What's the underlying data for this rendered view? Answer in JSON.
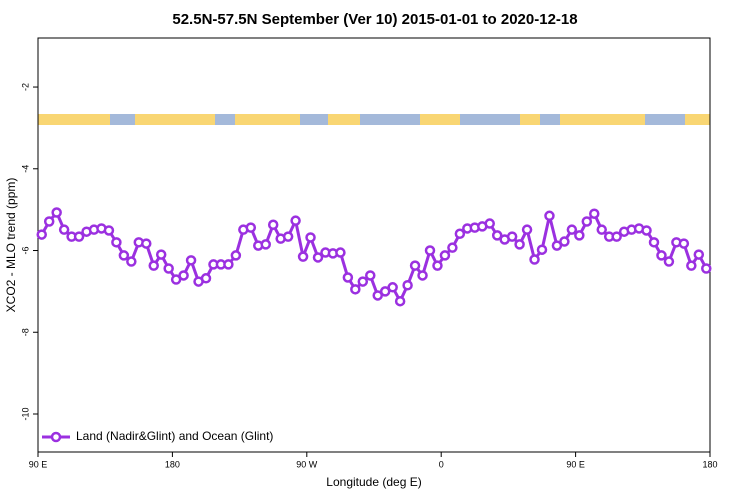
{
  "chart_data": {
    "type": "line",
    "title": "52.5N-57.5N September (Ver 10)   2015-01-01 to 2020-12-18",
    "x_label": "Longitude (deg E)",
    "y_label": "XCO2 - MLO trend (ppm)",
    "xlim": [
      90,
      540
    ],
    "ylim": [
      -10.93,
      -0.8
    ],
    "xticks": [
      {
        "value": 90,
        "label": "90 E"
      },
      {
        "value": 180,
        "label": "180"
      },
      {
        "value": 270,
        "label": "90 W"
      },
      {
        "value": 360,
        "label": "0"
      },
      {
        "value": 450,
        "label": "90 E"
      },
      {
        "value": 540,
        "label": "180"
      }
    ],
    "yticks": [
      -2,
      -4,
      -6,
      -8,
      -10
    ],
    "legend": "bottom-left",
    "x": [
      92.5,
      97.5,
      102.5,
      107.5,
      112.5,
      117.5,
      122.5,
      127.5,
      132.5,
      137.5,
      142.5,
      147.5,
      152.5,
      157.5,
      162.5,
      167.5,
      172.5,
      177.5,
      182.5,
      187.5,
      192.5,
      197.5,
      202.5,
      207.5,
      212.5,
      217.5,
      222.5,
      227.5,
      232.5,
      237.5,
      242.5,
      247.5,
      252.5,
      257.5,
      262.5,
      267.5,
      272.5,
      277.5,
      282.5,
      287.5,
      292.5,
      297.5,
      302.5,
      307.5,
      312.5,
      317.5,
      322.5,
      327.5,
      332.5,
      337.5,
      342.5,
      347.5,
      352.5,
      357.5,
      362.5,
      367.5,
      372.5,
      377.5,
      382.5,
      387.5,
      392.5,
      397.5,
      402.5,
      407.5,
      412.5,
      417.5,
      422.5,
      427.5,
      432.5,
      437.5,
      442.5,
      447.5,
      452.5,
      457.5,
      462.5,
      467.5,
      472.5,
      477.5,
      482.5,
      487.5,
      492.5,
      497.5,
      502.5,
      507.5,
      512.5,
      517.5,
      522.5,
      527.5,
      532.5,
      537.5
    ],
    "series": [
      {
        "name": "Land (Nadir&Glint) and Ocean (Glint)",
        "color": "#9b30e0",
        "values": [
          -5.61,
          -5.29,
          -5.07,
          -5.49,
          -5.66,
          -5.66,
          -5.54,
          -5.49,
          -5.46,
          -5.51,
          -5.8,
          -6.12,
          -6.27,
          -5.8,
          -5.83,
          -6.37,
          -6.1,
          -6.44,
          -6.71,
          -6.61,
          -6.24,
          -6.76,
          -6.68,
          -6.34,
          -6.34,
          -6.34,
          -6.12,
          -5.49,
          -5.44,
          -5.88,
          -5.85,
          -5.37,
          -5.71,
          -5.66,
          -5.27,
          -6.15,
          -5.68,
          -6.17,
          -6.05,
          -6.07,
          -6.05,
          -6.66,
          -6.95,
          -6.76,
          -6.61,
          -7.1,
          -7.0,
          -6.9,
          -7.24,
          -6.85,
          -6.37,
          -6.61,
          -6.0,
          -6.37,
          -6.12,
          -5.93,
          -5.59,
          -5.46,
          -5.44,
          -5.41,
          -5.34,
          -5.63,
          -5.73,
          -5.66,
          -5.85,
          -5.49,
          -6.22,
          -5.98,
          -5.15,
          -5.88,
          -5.78,
          -5.49,
          -5.63,
          -5.29,
          -5.1,
          -5.49,
          -5.66,
          -5.66,
          -5.54,
          -5.49,
          -5.46,
          -5.51,
          -5.8,
          -6.12,
          -6.27,
          -5.8,
          -5.83,
          -6.37,
          -6.1,
          -6.44
        ]
      }
    ]
  }
}
